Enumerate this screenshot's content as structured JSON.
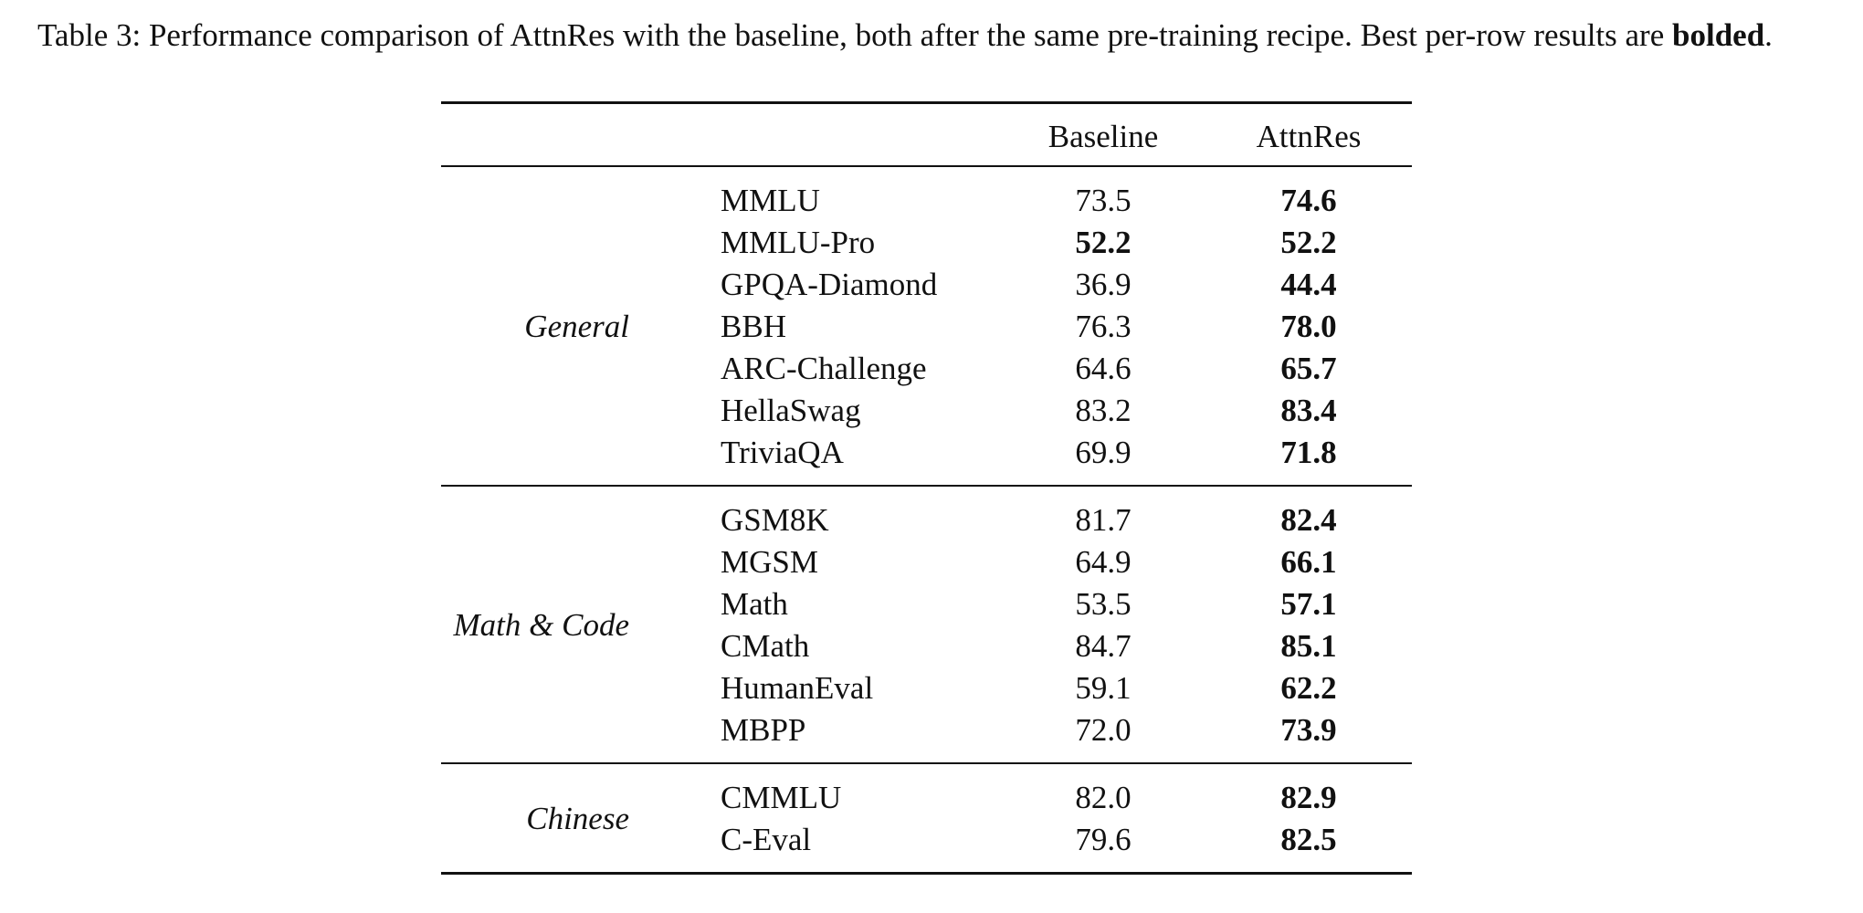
{
  "caption": {
    "text": "Table 3: Performance comparison of AttnRes with the baseline, both after the same pre-training recipe. Best per-row results are ",
    "bold_word": "bolded",
    "end": "."
  },
  "table": {
    "columns": [
      "Baseline",
      "AttnRes"
    ],
    "groups": [
      {
        "label": "General",
        "rows": [
          {
            "benchmark": "MMLU",
            "baseline": "73.5",
            "attnres": "74.6",
            "best": [
              "attnres"
            ]
          },
          {
            "benchmark": "MMLU-Pro",
            "baseline": "52.2",
            "attnres": "52.2",
            "best": [
              "baseline",
              "attnres"
            ]
          },
          {
            "benchmark": "GPQA-Diamond",
            "baseline": "36.9",
            "attnres": "44.4",
            "best": [
              "attnres"
            ]
          },
          {
            "benchmark": "BBH",
            "baseline": "76.3",
            "attnres": "78.0",
            "best": [
              "attnres"
            ]
          },
          {
            "benchmark": "ARC-Challenge",
            "baseline": "64.6",
            "attnres": "65.7",
            "best": [
              "attnres"
            ]
          },
          {
            "benchmark": "HellaSwag",
            "baseline": "83.2",
            "attnres": "83.4",
            "best": [
              "attnres"
            ]
          },
          {
            "benchmark": "TriviaQA",
            "baseline": "69.9",
            "attnres": "71.8",
            "best": [
              "attnres"
            ]
          }
        ]
      },
      {
        "label": "Math & Code",
        "rows": [
          {
            "benchmark": "GSM8K",
            "baseline": "81.7",
            "attnres": "82.4",
            "best": [
              "attnres"
            ]
          },
          {
            "benchmark": "MGSM",
            "baseline": "64.9",
            "attnres": "66.1",
            "best": [
              "attnres"
            ]
          },
          {
            "benchmark": "Math",
            "baseline": "53.5",
            "attnres": "57.1",
            "best": [
              "attnres"
            ]
          },
          {
            "benchmark": "CMath",
            "baseline": "84.7",
            "attnres": "85.1",
            "best": [
              "attnres"
            ]
          },
          {
            "benchmark": "HumanEval",
            "baseline": "59.1",
            "attnres": "62.2",
            "best": [
              "attnres"
            ]
          },
          {
            "benchmark": "MBPP",
            "baseline": "72.0",
            "attnres": "73.9",
            "best": [
              "attnres"
            ]
          }
        ]
      },
      {
        "label": "Chinese",
        "rows": [
          {
            "benchmark": "CMMLU",
            "baseline": "82.0",
            "attnres": "82.9",
            "best": [
              "attnres"
            ]
          },
          {
            "benchmark": "C-Eval",
            "baseline": "79.6",
            "attnres": "82.5",
            "best": [
              "attnres"
            ]
          }
        ]
      }
    ]
  }
}
